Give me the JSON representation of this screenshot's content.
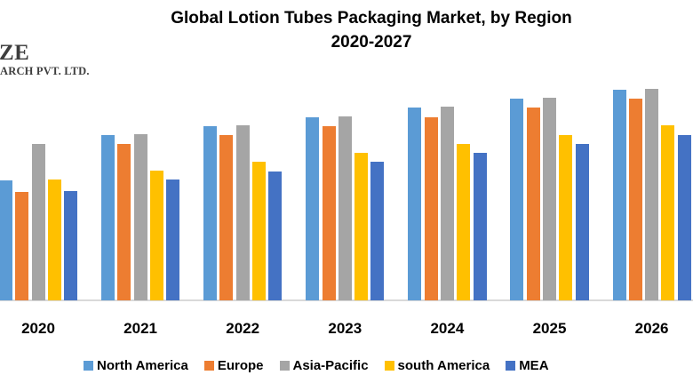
{
  "logo": {
    "line1": "ZE",
    "line2": "ARCH PVT. LTD."
  },
  "chart_data": {
    "type": "bar",
    "title": "Global Lotion Tubes Packaging Market, by Region",
    "subtitle": "2020-2027",
    "categories": [
      "2020",
      "2021",
      "2022",
      "2023",
      "2024",
      "2025",
      "2026"
    ],
    "series": [
      {
        "name": "North America",
        "color": "#5B9BD5",
        "values": [
          135,
          186,
          196,
          206,
          217,
          227,
          237
        ]
      },
      {
        "name": "Europe",
        "color": "#ED7D31",
        "values": [
          122,
          176,
          186,
          196,
          206,
          217,
          227
        ]
      },
      {
        "name": "Asia-Pacific",
        "color": "#A5A5A5",
        "values": [
          176,
          187,
          197,
          207,
          218,
          228,
          238
        ]
      },
      {
        "name": "south America",
        "color": "#FFC000",
        "values": [
          136,
          146,
          156,
          166,
          176,
          186,
          197
        ]
      },
      {
        "name": "MEA",
        "color": "#4472C4",
        "values": [
          123,
          136,
          145,
          156,
          166,
          176,
          186
        ]
      }
    ],
    "xlabel": "",
    "ylabel": "",
    "value_scale": "relative bar height, no y-axis or value labels shown",
    "ylim": [
      0,
      260
    ],
    "grid": false,
    "legend_position": "bottom",
    "axis_line_color": "#D9D9D9",
    "notes": "leftmost 2020 North America bar is clipped by the left image edge; chart cropped before 2027 group"
  }
}
